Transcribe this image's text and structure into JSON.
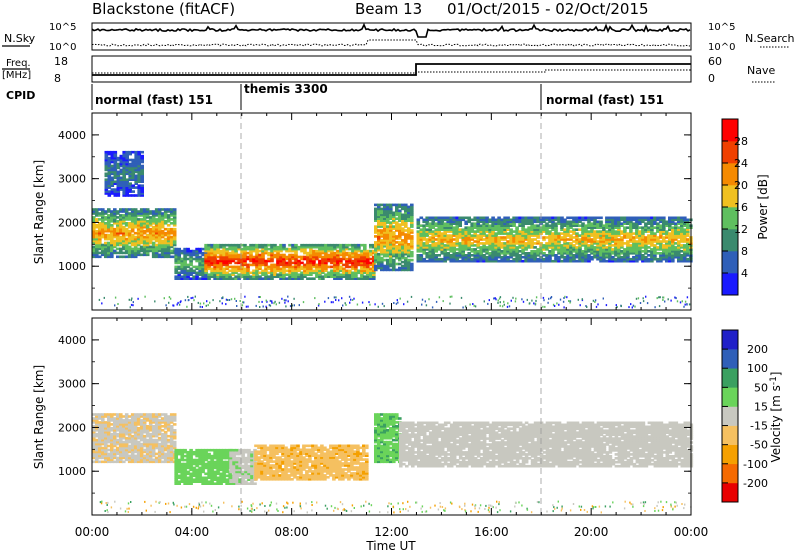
{
  "header": {
    "station": "Blackstone (fitACF)",
    "beam": "Beam 13",
    "dates": "01/Oct/2015 - 02/Oct/2015"
  },
  "noise_panel": {
    "left_label": "N.Sky",
    "right_label": "N.Search",
    "left_ticks": [
      "10^5",
      "10^0"
    ],
    "right_ticks": [
      "10^5",
      "10^0"
    ]
  },
  "freq_panel": {
    "left_label_top": "Freq.",
    "left_label_unit": "[MHz]",
    "left_ticks": [
      "18",
      "8"
    ],
    "right_label": "Nave",
    "right_ticks": [
      "60",
      "0"
    ]
  },
  "cpid_panel": {
    "label": "CPID",
    "segments": [
      {
        "start_hour": 0,
        "text": "normal (fast) 151"
      },
      {
        "start_hour": 6,
        "text": "themis 3300"
      },
      {
        "start_hour": 18,
        "text": "normal (fast) 151"
      }
    ]
  },
  "colors": {
    "power_scale": [
      "#1a1aff",
      "#2f5fb8",
      "#3a8a6e",
      "#5fbf5f",
      "#f0c020",
      "#f58a00",
      "#f04000",
      "#ff0000"
    ],
    "velocity_scale": [
      "#e80000",
      "#f56a00",
      "#f5a000",
      "#f5c060",
      "#c8c8c0",
      "#6ad45a",
      "#3aa060",
      "#2f5fb8",
      "#2020c8"
    ]
  },
  "chart_data": [
    {
      "type": "heatmap",
      "panel": "power",
      "ylabel": "Slant Range [km]",
      "yticks": [
        "1000",
        "2000",
        "3000",
        "4000"
      ],
      "ylim": [
        0,
        4500
      ],
      "colorbar_label": "Power [dB]",
      "colorbar_ticks": [
        "28",
        "24",
        "20",
        "16",
        "12",
        "8",
        "4"
      ],
      "colorbar_range": [
        0,
        32
      ],
      "xlim": [
        0,
        24
      ],
      "bands": [
        {
          "t0": 0.5,
          "t1": 2.0,
          "r0": 2600,
          "r1": 3600,
          "db": 8
        },
        {
          "t0": 0.0,
          "t1": 3.3,
          "r0": 1200,
          "r1": 2300,
          "db": 20
        },
        {
          "t0": 3.3,
          "t1": 4.6,
          "r0": 700,
          "r1": 1400,
          "db": 12
        },
        {
          "t0": 4.5,
          "t1": 11.3,
          "r0": 700,
          "r1": 1500,
          "db": 26
        },
        {
          "t0": 11.3,
          "t1": 12.8,
          "r0": 900,
          "r1": 2400,
          "db": 20
        },
        {
          "t0": 13.0,
          "t1": 24.0,
          "r0": 1100,
          "r1": 2100,
          "db": 18
        }
      ]
    },
    {
      "type": "heatmap",
      "panel": "velocity",
      "ylabel": "Slant Range [km]",
      "yticks": [
        "1000",
        "2000",
        "3000",
        "4000"
      ],
      "ylim": [
        0,
        4500
      ],
      "colorbar_label": "Velocity [m s^-1]",
      "colorbar_ticks": [
        "200",
        "100",
        "50",
        "15",
        "-15",
        "-50",
        "-100",
        "-200"
      ],
      "xticks": [
        "00:00",
        "04:00",
        "08:00",
        "12:00",
        "16:00",
        "20:00",
        "00:00"
      ],
      "xlim": [
        0,
        24
      ],
      "xlabel": "Time UT",
      "bands": [
        {
          "t0": 0.0,
          "t1": 3.3,
          "r0": 1200,
          "r1": 2300,
          "v": -10
        },
        {
          "t0": 3.3,
          "t1": 5.5,
          "r0": 700,
          "r1": 1500,
          "v": 30
        },
        {
          "t0": 5.5,
          "t1": 6.5,
          "r0": 700,
          "r1": 1500,
          "v": 5
        },
        {
          "t0": 6.5,
          "t1": 11.0,
          "r0": 800,
          "r1": 1600,
          "v": -40
        },
        {
          "t0": 11.3,
          "t1": 12.3,
          "r0": 1200,
          "r1": 2300,
          "v": 40
        },
        {
          "t0": 12.3,
          "t1": 24.0,
          "r0": 1100,
          "r1": 2100,
          "v": 0
        }
      ]
    }
  ]
}
